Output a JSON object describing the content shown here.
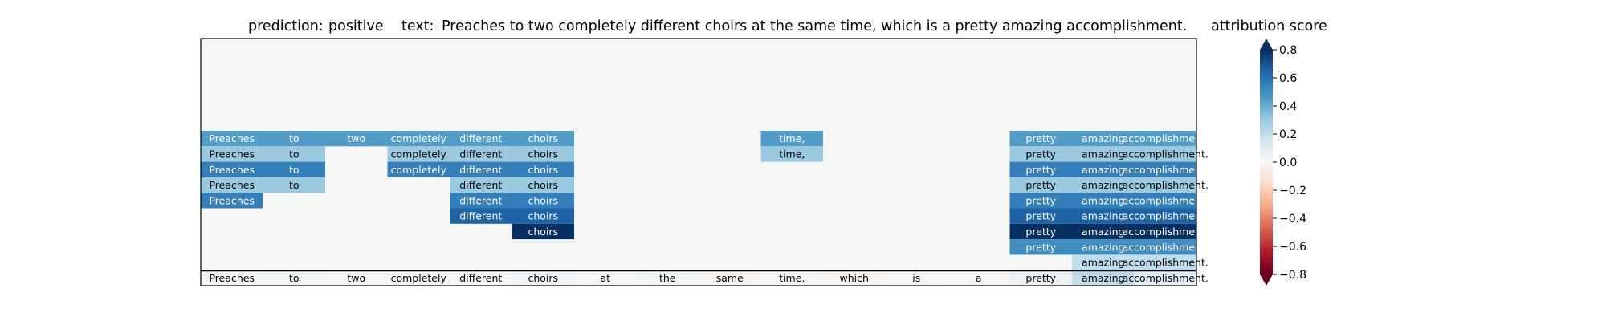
{
  "header": {
    "prediction_label": "prediction:",
    "prediction": "positive",
    "text_label": "text:",
    "text": "Preaches to two completely different choirs at the same time, which is a pretty amazing accomplishment."
  },
  "colorbar": {
    "title": "attribution score",
    "ticks": [
      "0.8",
      "0.6",
      "0.4",
      "0.2",
      "0.0",
      "−0.2",
      "−0.4",
      "−0.6",
      "−0.8"
    ],
    "tick_values": [
      0.8,
      0.6,
      0.4,
      0.2,
      0.0,
      -0.2,
      -0.4,
      -0.6,
      -0.8
    ],
    "range": [
      -0.8,
      0.8
    ],
    "extend": "both",
    "colormap": "RdBu"
  },
  "chart_data": {
    "type": "heatmap",
    "tokens": [
      "Preaches",
      "to",
      "two",
      "completely",
      "different",
      "choirs",
      "at",
      "the",
      "same",
      "time,",
      "which",
      "is",
      "a",
      "pretty",
      "amazing",
      "accomplishment."
    ],
    "rows": [
      [
        0.45,
        0.45,
        0.45,
        0.45,
        0.45,
        0.45,
        null,
        null,
        null,
        0.45,
        null,
        null,
        null,
        0.45,
        0.45,
        0.45
      ],
      [
        0.3,
        0.3,
        null,
        0.3,
        0.3,
        0.3,
        null,
        null,
        null,
        0.3,
        null,
        null,
        null,
        0.3,
        0.3,
        0.3
      ],
      [
        0.55,
        0.55,
        null,
        0.55,
        0.55,
        0.55,
        null,
        null,
        null,
        null,
        null,
        null,
        null,
        0.55,
        0.55,
        0.55
      ],
      [
        0.3,
        0.3,
        null,
        null,
        0.3,
        0.3,
        null,
        null,
        null,
        null,
        null,
        null,
        null,
        0.3,
        0.3,
        0.3
      ],
      [
        0.55,
        null,
        null,
        null,
        0.55,
        0.55,
        null,
        null,
        null,
        null,
        null,
        null,
        null,
        0.55,
        0.55,
        0.55
      ],
      [
        null,
        null,
        null,
        null,
        0.65,
        0.65,
        null,
        null,
        null,
        null,
        null,
        null,
        null,
        0.65,
        0.65,
        0.65
      ],
      [
        null,
        null,
        null,
        null,
        null,
        0.8,
        null,
        null,
        null,
        null,
        null,
        null,
        null,
        0.8,
        0.8,
        0.8
      ],
      [
        null,
        null,
        null,
        null,
        null,
        null,
        null,
        null,
        null,
        null,
        null,
        null,
        null,
        0.5,
        0.5,
        0.5
      ],
      [
        null,
        null,
        null,
        null,
        null,
        null,
        null,
        null,
        null,
        null,
        null,
        null,
        null,
        null,
        0.2,
        0.2
      ],
      [
        0.01,
        0.02,
        -0.01,
        0.01,
        0.0,
        0.03,
        0.01,
        0.02,
        -0.02,
        -0.01,
        -0.02,
        0.01,
        -0.01,
        0.05,
        0.2,
        0.08
      ]
    ],
    "colors": {
      "background": "#f5f7f7",
      "dark_pos": "#053061",
      "dark_neg": "#67001f"
    }
  }
}
